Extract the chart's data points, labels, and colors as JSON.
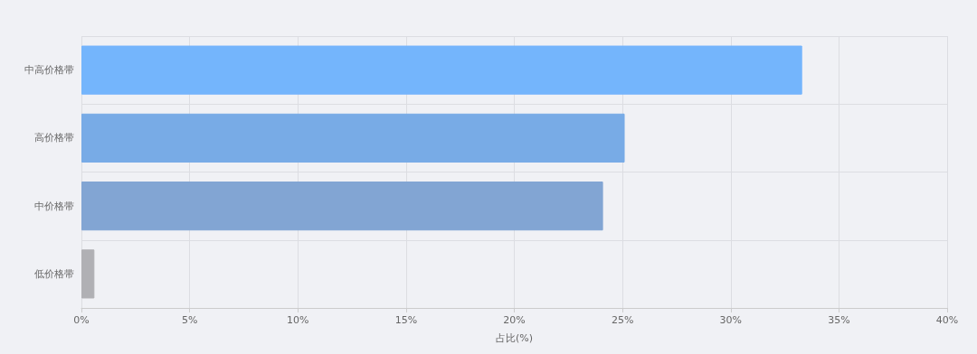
{
  "chart_data": {
    "type": "bar",
    "orientation": "horizontal",
    "xlabel": "占比(%)",
    "categories": [
      "中高价格带",
      "高价格带",
      "中价格带",
      "低价格带"
    ],
    "values": [
      33.3,
      25.1,
      24.1,
      0.6
    ],
    "colors": [
      "#74b5fc",
      "#78abe6",
      "#82a5d3",
      "#b0b0b4"
    ],
    "xlim": [
      0,
      40
    ],
    "xticks": [
      {
        "value": 0,
        "label": "0%"
      },
      {
        "value": 5,
        "label": "5%"
      },
      {
        "value": 10,
        "label": "10%"
      },
      {
        "value": 15,
        "label": "15%"
      },
      {
        "value": 20,
        "label": "20%"
      },
      {
        "value": 25,
        "label": "25%"
      },
      {
        "value": 30,
        "label": "30%"
      },
      {
        "value": 35,
        "label": "35%"
      },
      {
        "value": 40,
        "label": "40%"
      }
    ],
    "grid": true
  }
}
